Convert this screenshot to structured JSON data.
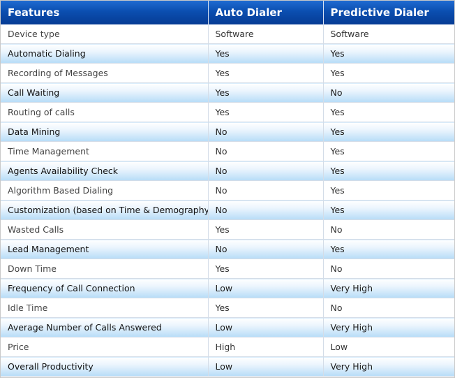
{
  "header": {
    "col1": "Features",
    "col2": "Auto Dialer",
    "col3": "Predictive Dialer"
  },
  "rows": [
    {
      "feature": "Device type",
      "auto": "Software",
      "predictive": "Software"
    },
    {
      "feature": "Automatic Dialing",
      "auto": "Yes",
      "predictive": "Yes"
    },
    {
      "feature": "Recording of Messages",
      "auto": "Yes",
      "predictive": "Yes"
    },
    {
      "feature": "Call Waiting",
      "auto": "Yes",
      "predictive": "No"
    },
    {
      "feature": "Routing of calls",
      "auto": "Yes",
      "predictive": "Yes"
    },
    {
      "feature": "Data Mining",
      "auto": "No",
      "predictive": "Yes"
    },
    {
      "feature": "Time Management",
      "auto": "No",
      "predictive": "Yes"
    },
    {
      "feature": "Agents Availability Check",
      "auto": "No",
      "predictive": "Yes"
    },
    {
      "feature": "Algorithm Based Dialing",
      "auto": "No",
      "predictive": "Yes"
    },
    {
      "feature": "Customization (based on Time & Demography)",
      "auto": "No",
      "predictive": "Yes"
    },
    {
      "feature": "Wasted Calls",
      "auto": "Yes",
      "predictive": "No"
    },
    {
      "feature": "Lead Management",
      "auto": "No",
      "predictive": "Yes"
    },
    {
      "feature": "Down Time",
      "auto": "Yes",
      "predictive": "No"
    },
    {
      "feature": "Frequency of Call Connection",
      "auto": "Low",
      "predictive": "Very High"
    },
    {
      "feature": "Idle Time",
      "auto": "Yes",
      "predictive": "No"
    },
    {
      "feature": "Average Number of Calls Answered",
      "auto": "Low",
      "predictive": "Very High"
    },
    {
      "feature": "Price",
      "auto": "High",
      "predictive": "Low"
    },
    {
      "feature": "Overall Productivity",
      "auto": "Low",
      "predictive": "Very High"
    }
  ]
}
